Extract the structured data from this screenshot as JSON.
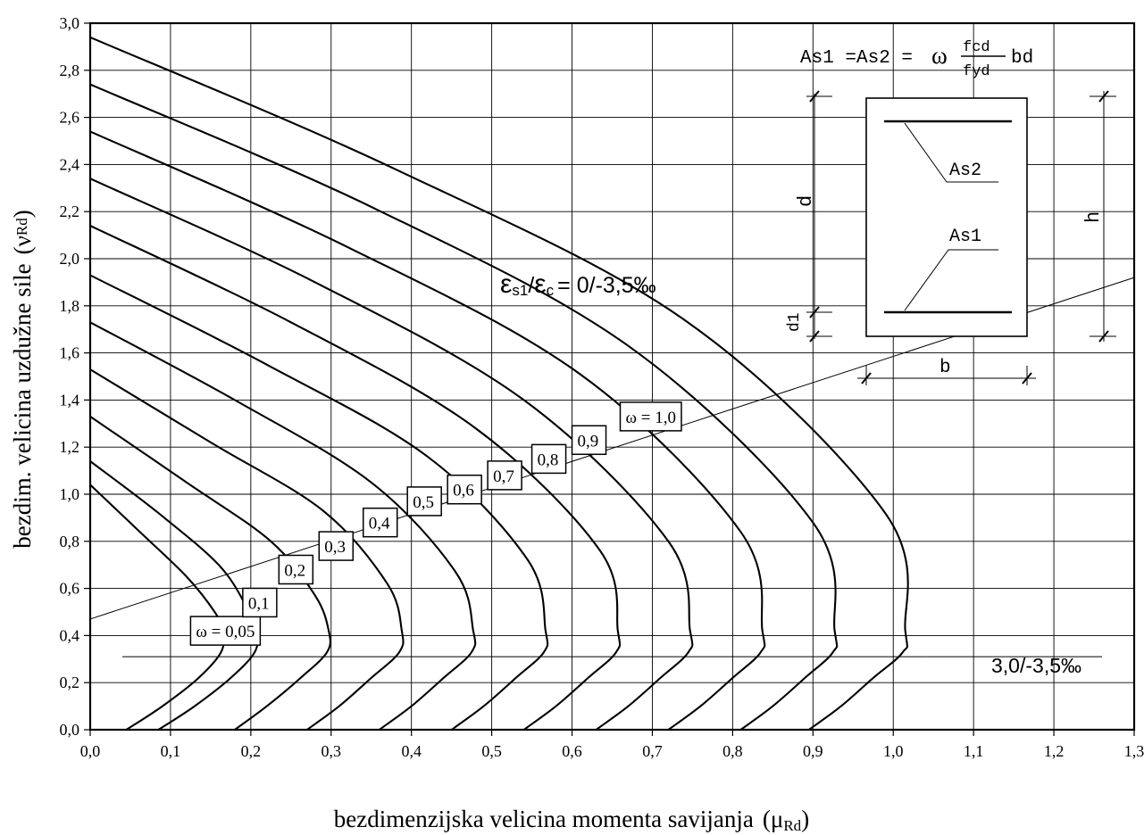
{
  "chart_data": {
    "type": "line",
    "xlabel": "bezdimenzijska velicina momenta savijanja",
    "xlabel_symbol": "(μ",
    "xlabel_sub": "Rd",
    "xlabel_close": ")",
    "ylabel": "bezdim. velicina uzdužne sile",
    "ylabel_symbol": "(ν",
    "ylabel_sub": "Rd",
    "ylabel_close": ")",
    "xlim": [
      0,
      1.3
    ],
    "ylim": [
      0,
      3.0
    ],
    "grid": true,
    "x_ticks": [
      {
        "value": 0.0,
        "label": "0,0"
      },
      {
        "value": 0.1,
        "label": "0,1"
      },
      {
        "value": 0.2,
        "label": "0,2"
      },
      {
        "value": 0.3,
        "label": "0,3"
      },
      {
        "value": 0.4,
        "label": "0,4"
      },
      {
        "value": 0.5,
        "label": "0,5"
      },
      {
        "value": 0.6,
        "label": "0,6"
      },
      {
        "value": 0.7,
        "label": "0,7"
      },
      {
        "value": 0.8,
        "label": "0,8"
      },
      {
        "value": 0.9,
        "label": "0,9"
      },
      {
        "value": 1.0,
        "label": "1,0"
      },
      {
        "value": 1.1,
        "label": "1,1"
      },
      {
        "value": 1.2,
        "label": "1,2"
      },
      {
        "value": 1.3,
        "label": "1,3"
      }
    ],
    "y_ticks": [
      {
        "value": 0.0,
        "label": "0,0"
      },
      {
        "value": 0.2,
        "label": "0,2"
      },
      {
        "value": 0.4,
        "label": "0,4"
      },
      {
        "value": 0.6,
        "label": "0,6"
      },
      {
        "value": 0.8,
        "label": "0,8"
      },
      {
        "value": 1.0,
        "label": "1,0"
      },
      {
        "value": 1.2,
        "label": "1,2"
      },
      {
        "value": 1.4,
        "label": "1,4"
      },
      {
        "value": 1.6,
        "label": "1,6"
      },
      {
        "value": 1.8,
        "label": "1,8"
      },
      {
        "value": 2.0,
        "label": "2,0"
      },
      {
        "value": 2.2,
        "label": "2,2"
      },
      {
        "value": 2.4,
        "label": "2,4"
      },
      {
        "value": 2.6,
        "label": "2,6"
      },
      {
        "value": 2.8,
        "label": "2,8"
      },
      {
        "value": 3.0,
        "label": "3,0"
      }
    ],
    "series": [
      {
        "name": "ω = 0,05",
        "omega": 0.05,
        "label_x": 0.125,
        "label_y": 0.42,
        "x": [
          0.0,
          0.065,
          0.12,
          0.155,
          0.165,
          0.163,
          0.135,
          0.09,
          0.045
        ],
        "y": [
          1.04,
          0.83,
          0.65,
          0.5,
          0.42,
          0.33,
          0.22,
          0.1,
          0.0
        ]
      },
      {
        "name": "0,1",
        "omega": 0.1,
        "label_x": 0.19,
        "label_y": 0.54,
        "x": [
          0.0,
          0.085,
          0.16,
          0.195,
          0.207,
          0.205,
          0.175,
          0.13,
          0.085
        ],
        "y": [
          1.14,
          0.92,
          0.7,
          0.52,
          0.42,
          0.33,
          0.22,
          0.1,
          0.0
        ]
      },
      {
        "name": "0,2",
        "omega": 0.2,
        "label_x": 0.235,
        "label_y": 0.68,
        "x": [
          0.0,
          0.12,
          0.225,
          0.28,
          0.297,
          0.295,
          0.262,
          0.22,
          0.18
        ],
        "y": [
          1.33,
          1.05,
          0.8,
          0.57,
          0.42,
          0.33,
          0.22,
          0.1,
          0.0
        ]
      },
      {
        "name": "0,3",
        "omega": 0.3,
        "label_x": 0.285,
        "label_y": 0.78,
        "x": [
          0.0,
          0.15,
          0.29,
          0.37,
          0.388,
          0.385,
          0.35,
          0.31,
          0.27
        ],
        "y": [
          1.53,
          1.22,
          0.93,
          0.62,
          0.42,
          0.33,
          0.22,
          0.1,
          0.0
        ]
      },
      {
        "name": "0,4",
        "omega": 0.4,
        "label_x": 0.34,
        "label_y": 0.88,
        "x": [
          0.0,
          0.18,
          0.35,
          0.455,
          0.477,
          0.475,
          0.44,
          0.4,
          0.36
        ],
        "y": [
          1.73,
          1.4,
          1.05,
          0.67,
          0.42,
          0.33,
          0.22,
          0.1,
          0.0
        ]
      },
      {
        "name": "0,5",
        "omega": 0.5,
        "label_x": 0.395,
        "label_y": 0.97,
        "x": [
          0.0,
          0.22,
          0.42,
          0.545,
          0.567,
          0.565,
          0.53,
          0.49,
          0.45
        ],
        "y": [
          1.93,
          1.55,
          1.16,
          0.72,
          0.42,
          0.33,
          0.22,
          0.1,
          0.0
        ]
      },
      {
        "name": "0,6",
        "omega": 0.6,
        "label_x": 0.445,
        "label_y": 1.02,
        "x": [
          0.0,
          0.25,
          0.48,
          0.635,
          0.657,
          0.655,
          0.62,
          0.58,
          0.54
        ],
        "y": [
          2.14,
          1.73,
          1.28,
          0.76,
          0.42,
          0.33,
          0.22,
          0.1,
          0.0
        ]
      },
      {
        "name": "0,7",
        "omega": 0.7,
        "label_x": 0.495,
        "label_y": 1.08,
        "x": [
          0.0,
          0.28,
          0.54,
          0.72,
          0.747,
          0.745,
          0.71,
          0.67,
          0.63
        ],
        "y": [
          2.34,
          1.9,
          1.4,
          0.8,
          0.42,
          0.33,
          0.22,
          0.1,
          0.0
        ]
      },
      {
        "name": "0,8",
        "omega": 0.8,
        "label_x": 0.55,
        "label_y": 1.15,
        "x": [
          0.0,
          0.32,
          0.61,
          0.81,
          0.837,
          0.835,
          0.8,
          0.76,
          0.72
        ],
        "y": [
          2.54,
          2.05,
          1.51,
          0.84,
          0.42,
          0.33,
          0.22,
          0.1,
          0.0
        ]
      },
      {
        "name": "0,9",
        "omega": 0.9,
        "label_x": 0.6,
        "label_y": 1.23,
        "x": [
          0.0,
          0.35,
          0.67,
          0.9,
          0.927,
          0.925,
          0.89,
          0.85,
          0.81
        ],
        "y": [
          2.74,
          2.22,
          1.63,
          0.88,
          0.42,
          0.33,
          0.22,
          0.1,
          0.0
        ]
      },
      {
        "name": "ω  = 1,0",
        "omega": 1.0,
        "label_x": 0.66,
        "label_y": 1.33,
        "x": [
          0.0,
          0.38,
          0.74,
          0.99,
          1.015,
          1.012,
          0.975,
          0.935,
          0.895
        ],
        "y": [
          2.94,
          2.38,
          1.74,
          0.92,
          0.42,
          0.33,
          0.22,
          0.1,
          0.0
        ]
      }
    ],
    "boundary_line": {
      "x": [
        0.0,
        1.3
      ],
      "y": [
        0.47,
        1.92
      ]
    },
    "lower_line": {
      "x": [
        0.04,
        1.04
      ],
      "y": [
        0.31,
        0.31
      ]
    },
    "annotations": {
      "strain_upper_eps1": "ε",
      "strain_upper_sub1": "s1",
      "strain_upper_mid": "/",
      "strain_upper_eps2": "ε",
      "strain_upper_sub2": "c",
      "strain_upper_value": "= 0/-3,5‰",
      "strain_lower": "3,0/-3,5‰",
      "formula_lhs": "As1 =As2 =",
      "formula_omega": "ω",
      "formula_num": "fcd",
      "formula_den": "fyd",
      "formula_rhs": "bd",
      "section_as2": "As2",
      "section_as1": "As1",
      "section_d": "d",
      "section_h": "h",
      "section_d1": "d1",
      "section_b": "b"
    }
  }
}
